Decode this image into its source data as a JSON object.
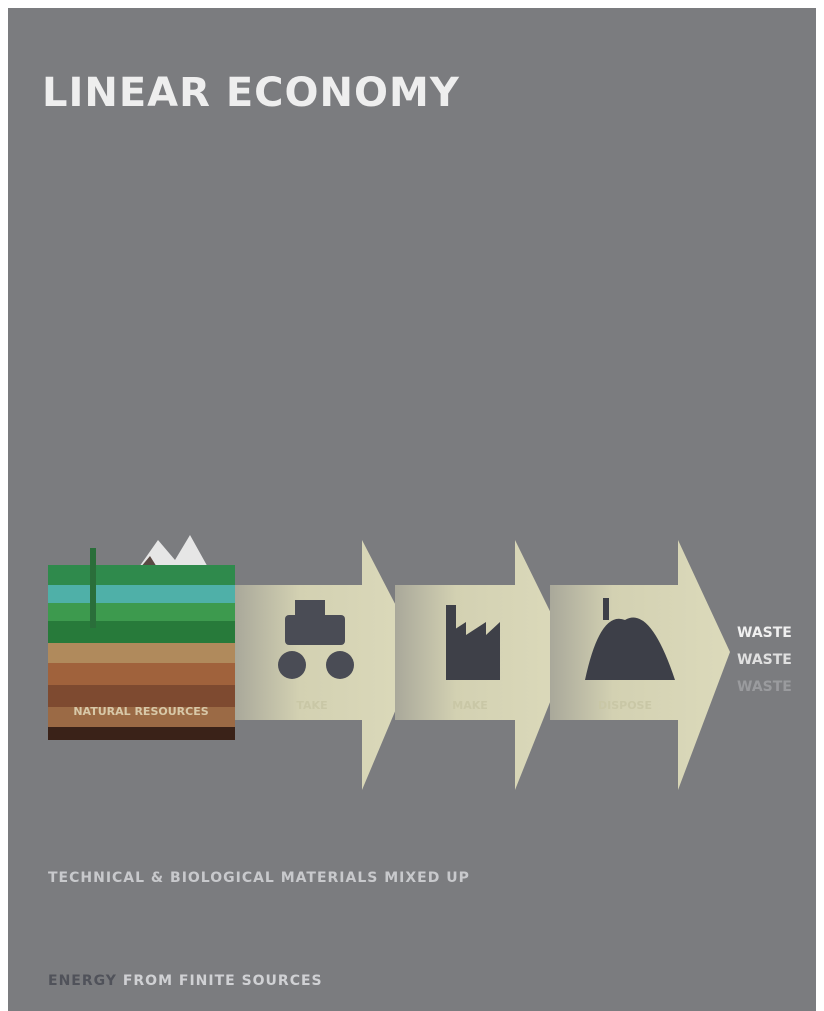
{
  "title": "LINEAR ECONOMY",
  "stages": [
    {
      "label": "NATURAL RESOURCES"
    },
    {
      "label": "TAKE"
    },
    {
      "label": "MAKE"
    },
    {
      "label": "DISPOSE"
    }
  ],
  "waste": [
    "WASTE",
    "WASTE",
    "WASTE"
  ],
  "footer": {
    "line1": "TECHNICAL & BIOLOGICAL MATERIALS MIXED UP",
    "line2_strong": "ENERGY",
    "line2": "FROM FINITE SOURCES"
  }
}
